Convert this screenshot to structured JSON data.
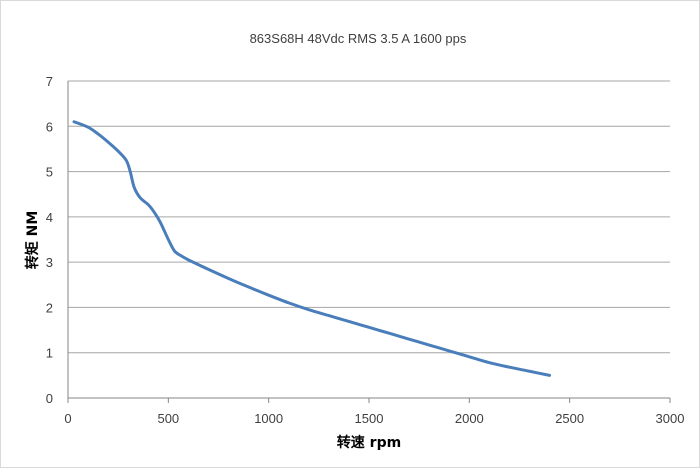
{
  "chart_data": {
    "type": "line",
    "title": "863S68H  48Vdc   RMS 3.5 A  1600 pps",
    "xlabel": "转速 rpm",
    "ylabel": "转矩 NM",
    "xlim": [
      0,
      3000
    ],
    "ylim": [
      0,
      7
    ],
    "xticks": [
      0,
      500,
      1000,
      1500,
      2000,
      2500,
      3000
    ],
    "yticks": [
      0,
      1,
      2,
      3,
      4,
      5,
      6,
      7
    ],
    "grid": "horizontal",
    "legend": "none",
    "series": [
      {
        "color": "#4a7ebb",
        "x": [
          30,
          100,
          150,
          200,
          250,
          290,
          310,
          330,
          360,
          400,
          430,
          460,
          500,
          530,
          560,
          600,
          700,
          800,
          900,
          1000,
          1100,
          1200,
          1300,
          1400,
          1500,
          1600,
          1700,
          1800,
          1900,
          2000,
          2100,
          2200,
          2300,
          2400
        ],
        "y": [
          6.1,
          5.98,
          5.83,
          5.65,
          5.45,
          5.25,
          5.0,
          4.65,
          4.42,
          4.27,
          4.1,
          3.88,
          3.5,
          3.25,
          3.15,
          3.05,
          2.84,
          2.64,
          2.45,
          2.27,
          2.1,
          1.95,
          1.82,
          1.69,
          1.56,
          1.43,
          1.3,
          1.17,
          1.04,
          0.91,
          0.78,
          0.68,
          0.59,
          0.5
        ]
      }
    ]
  }
}
